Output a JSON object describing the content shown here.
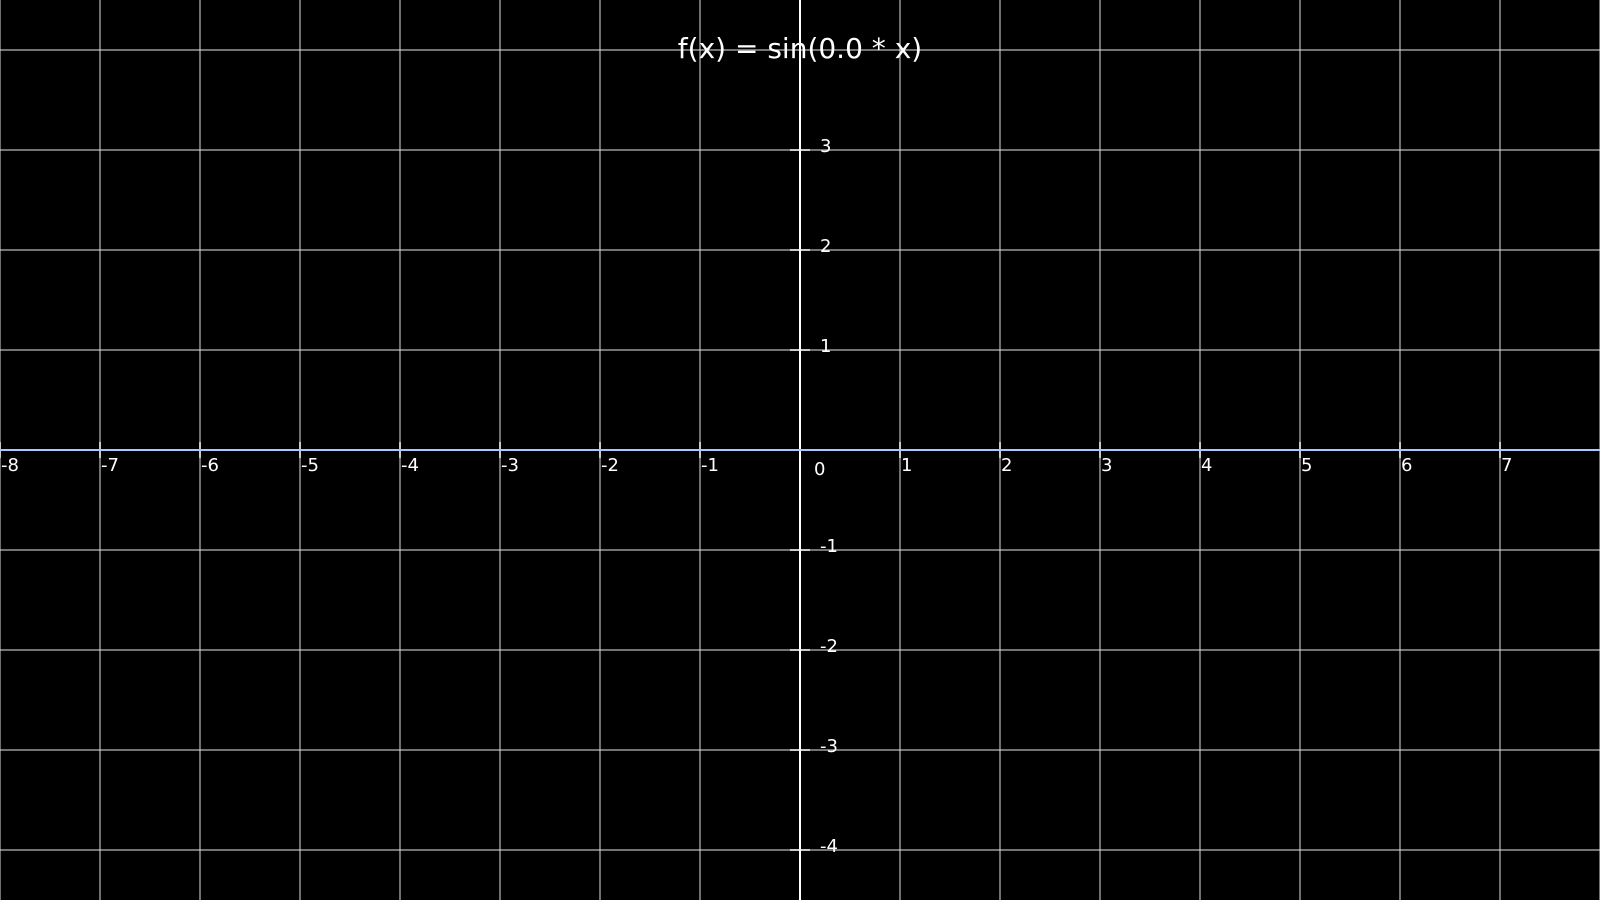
{
  "chart_data": {
    "type": "line",
    "title": "f(x) = sin(0.0 * x)",
    "xlabel": "",
    "ylabel": "",
    "xlim": [
      -8,
      8
    ],
    "ylim": [
      -4.5,
      4.5
    ],
    "x_ticks": [
      -8,
      -7,
      -6,
      -5,
      -4,
      -3,
      -2,
      -1,
      1,
      2,
      3,
      4,
      5,
      6,
      7
    ],
    "y_ticks": [
      3,
      2,
      1,
      -1,
      -2,
      -3,
      -4
    ],
    "origin_label": "0",
    "grid": true,
    "series": [
      {
        "x": [
          -8,
          -7,
          -6,
          -5,
          -4,
          -3,
          -2,
          -1,
          0,
          1,
          2,
          3,
          4,
          5,
          6,
          7,
          8
        ],
        "y": [
          0,
          0,
          0,
          0,
          0,
          0,
          0,
          0,
          0,
          0,
          0,
          0,
          0,
          0,
          0,
          0,
          0
        ],
        "color": "#a9c8ff"
      }
    ],
    "colors": {
      "background": "#000000",
      "grid": "#d9d9d9",
      "axis": "#ffffff",
      "text": "#ffffff"
    }
  }
}
